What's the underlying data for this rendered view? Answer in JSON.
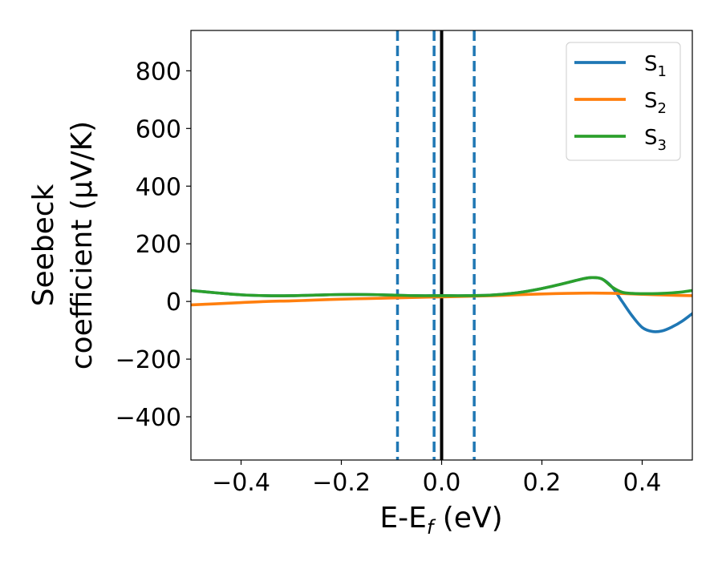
{
  "chart_data": {
    "type": "line",
    "xlabel": "E-E",
    "xlabel_sub": "f",
    "xlabel_unit": " (eV)",
    "ylabel_line1": "Seebeck",
    "ylabel_line2": "coefficient  (μV/K)",
    "xlim": [
      -0.5,
      0.5
    ],
    "ylim": [
      -550,
      940
    ],
    "xticks": [
      -0.4,
      -0.2,
      0.0,
      0.2,
      0.4
    ],
    "xtick_labels": [
      "−0.4",
      "−0.2",
      "0.0",
      "0.2",
      "0.4"
    ],
    "yticks": [
      -400,
      -200,
      0,
      200,
      400,
      600,
      800
    ],
    "ytick_labels": [
      "−400",
      "−200",
      "0",
      "200",
      "400",
      "600",
      "800"
    ],
    "grid": false,
    "legend_position": "top-right",
    "vlines": [
      {
        "x": -0.088,
        "style": "dashed",
        "color": "#1f77b4"
      },
      {
        "x": -0.015,
        "style": "dashed",
        "color": "#1f77b4"
      },
      {
        "x": 0.0,
        "style": "solid",
        "color": "#000000"
      },
      {
        "x": 0.065,
        "style": "dashed",
        "color": "#1f77b4"
      }
    ],
    "series": [
      {
        "name": "S",
        "name_sub": "1",
        "color": "#1f77b4",
        "points": [
          [
            -0.5,
            38
          ],
          [
            -0.45,
            30
          ],
          [
            -0.4,
            23
          ],
          [
            -0.35,
            20
          ],
          [
            -0.3,
            20
          ],
          [
            -0.25,
            22
          ],
          [
            -0.2,
            24
          ],
          [
            -0.15,
            24
          ],
          [
            -0.1,
            22
          ],
          [
            -0.05,
            20
          ],
          [
            0.0,
            20
          ],
          [
            0.05,
            20
          ],
          [
            0.1,
            22
          ],
          [
            0.15,
            30
          ],
          [
            0.2,
            45
          ],
          [
            0.25,
            65
          ],
          [
            0.28,
            78
          ],
          [
            0.3,
            83
          ],
          [
            0.32,
            78
          ],
          [
            0.34,
            50
          ],
          [
            0.36,
            0
          ],
          [
            0.38,
            -50
          ],
          [
            0.4,
            -90
          ],
          [
            0.42,
            -104
          ],
          [
            0.44,
            -102
          ],
          [
            0.46,
            -88
          ],
          [
            0.48,
            -68
          ],
          [
            0.5,
            -42
          ]
        ]
      },
      {
        "name": "S",
        "name_sub": "2",
        "color": "#ff7f0e",
        "points": [
          [
            -0.5,
            -12
          ],
          [
            -0.45,
            -8
          ],
          [
            -0.4,
            -4
          ],
          [
            -0.35,
            0
          ],
          [
            -0.3,
            2
          ],
          [
            -0.25,
            5
          ],
          [
            -0.2,
            8
          ],
          [
            -0.15,
            10
          ],
          [
            -0.1,
            12
          ],
          [
            -0.05,
            14
          ],
          [
            0.0,
            16
          ],
          [
            0.05,
            18
          ],
          [
            0.1,
            20
          ],
          [
            0.15,
            23
          ],
          [
            0.2,
            26
          ],
          [
            0.25,
            28
          ],
          [
            0.3,
            29
          ],
          [
            0.35,
            28
          ],
          [
            0.4,
            25
          ],
          [
            0.45,
            22
          ],
          [
            0.5,
            20
          ]
        ]
      },
      {
        "name": "S",
        "name_sub": "3",
        "color": "#2ca02c",
        "points": [
          [
            -0.5,
            38
          ],
          [
            -0.45,
            30
          ],
          [
            -0.4,
            23
          ],
          [
            -0.35,
            20
          ],
          [
            -0.3,
            20
          ],
          [
            -0.25,
            22
          ],
          [
            -0.2,
            24
          ],
          [
            -0.15,
            24
          ],
          [
            -0.1,
            22
          ],
          [
            -0.05,
            20
          ],
          [
            0.0,
            20
          ],
          [
            0.05,
            20
          ],
          [
            0.1,
            22
          ],
          [
            0.15,
            30
          ],
          [
            0.2,
            45
          ],
          [
            0.25,
            65
          ],
          [
            0.28,
            78
          ],
          [
            0.3,
            83
          ],
          [
            0.32,
            78
          ],
          [
            0.34,
            50
          ],
          [
            0.36,
            32
          ],
          [
            0.38,
            28
          ],
          [
            0.4,
            27
          ],
          [
            0.42,
            27
          ],
          [
            0.44,
            28
          ],
          [
            0.46,
            30
          ],
          [
            0.48,
            33
          ],
          [
            0.5,
            38
          ]
        ]
      }
    ]
  }
}
